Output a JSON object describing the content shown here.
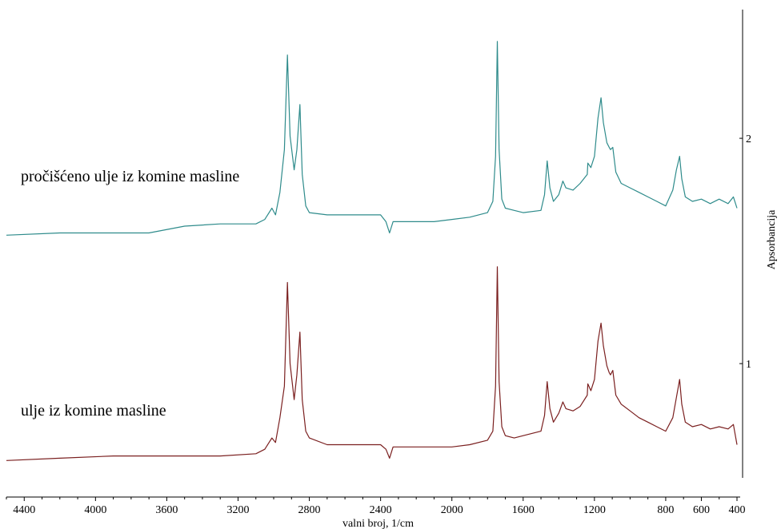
{
  "chart_data": {
    "type": "line",
    "xlabel": "valni broj, 1/cm",
    "ylabel": "Apsorbancija",
    "xlim": [
      4500,
      400
    ],
    "ylim": [
      0.5,
      2.55
    ],
    "x_ticks": [
      4400,
      4000,
      3600,
      3200,
      2800,
      2400,
      2000,
      1600,
      1200,
      800,
      600,
      400
    ],
    "y_ticks": [
      1,
      2
    ],
    "grid": false,
    "series": [
      {
        "name": "pročišćeno ulje iz komine masline",
        "color": "#2e8b8b",
        "points": [
          [
            4500,
            1.57
          ],
          [
            4200,
            1.58
          ],
          [
            3900,
            1.58
          ],
          [
            3700,
            1.58
          ],
          [
            3500,
            1.61
          ],
          [
            3300,
            1.62
          ],
          [
            3100,
            1.62
          ],
          [
            3050,
            1.64
          ],
          [
            3010,
            1.69
          ],
          [
            2990,
            1.66
          ],
          [
            2965,
            1.76
          ],
          [
            2940,
            1.95
          ],
          [
            2923,
            2.37
          ],
          [
            2908,
            2.01
          ],
          [
            2885,
            1.86
          ],
          [
            2870,
            1.95
          ],
          [
            2853,
            2.15
          ],
          [
            2840,
            1.84
          ],
          [
            2820,
            1.7
          ],
          [
            2800,
            1.67
          ],
          [
            2700,
            1.66
          ],
          [
            2500,
            1.66
          ],
          [
            2400,
            1.66
          ],
          [
            2370,
            1.63
          ],
          [
            2350,
            1.58
          ],
          [
            2330,
            1.63
          ],
          [
            2300,
            1.63
          ],
          [
            2200,
            1.63
          ],
          [
            2100,
            1.63
          ],
          [
            2000,
            1.64
          ],
          [
            1900,
            1.65
          ],
          [
            1800,
            1.67
          ],
          [
            1770,
            1.72
          ],
          [
            1755,
            1.92
          ],
          [
            1745,
            2.43
          ],
          [
            1735,
            1.95
          ],
          [
            1720,
            1.73
          ],
          [
            1700,
            1.69
          ],
          [
            1650,
            1.68
          ],
          [
            1600,
            1.67
          ],
          [
            1500,
            1.68
          ],
          [
            1480,
            1.75
          ],
          [
            1465,
            1.9
          ],
          [
            1450,
            1.78
          ],
          [
            1430,
            1.72
          ],
          [
            1400,
            1.75
          ],
          [
            1377,
            1.81
          ],
          [
            1360,
            1.78
          ],
          [
            1320,
            1.77
          ],
          [
            1280,
            1.8
          ],
          [
            1240,
            1.84
          ],
          [
            1237,
            1.89
          ],
          [
            1220,
            1.87
          ],
          [
            1200,
            1.92
          ],
          [
            1180,
            2.09
          ],
          [
            1163,
            2.18
          ],
          [
            1150,
            2.07
          ],
          [
            1130,
            1.98
          ],
          [
            1117,
            1.96
          ],
          [
            1110,
            1.95
          ],
          [
            1097,
            1.96
          ],
          [
            1080,
            1.85
          ],
          [
            1050,
            1.8
          ],
          [
            1000,
            1.78
          ],
          [
            950,
            1.76
          ],
          [
            900,
            1.74
          ],
          [
            850,
            1.72
          ],
          [
            800,
            1.7
          ],
          [
            760,
            1.77
          ],
          [
            740,
            1.86
          ],
          [
            722,
            1.92
          ],
          [
            710,
            1.82
          ],
          [
            690,
            1.74
          ],
          [
            650,
            1.72
          ],
          [
            600,
            1.73
          ],
          [
            550,
            1.71
          ],
          [
            500,
            1.73
          ],
          [
            450,
            1.71
          ],
          [
            420,
            1.74
          ],
          [
            400,
            1.69
          ]
        ]
      },
      {
        "name": "ulje iz komine masline",
        "color": "#7a1f1f",
        "points": [
          [
            4500,
            0.57
          ],
          [
            4200,
            0.58
          ],
          [
            3900,
            0.59
          ],
          [
            3700,
            0.59
          ],
          [
            3500,
            0.59
          ],
          [
            3300,
            0.59
          ],
          [
            3100,
            0.6
          ],
          [
            3050,
            0.62
          ],
          [
            3010,
            0.67
          ],
          [
            2990,
            0.65
          ],
          [
            2965,
            0.76
          ],
          [
            2940,
            0.9
          ],
          [
            2923,
            1.36
          ],
          [
            2908,
            1.0
          ],
          [
            2885,
            0.84
          ],
          [
            2870,
            0.95
          ],
          [
            2853,
            1.14
          ],
          [
            2840,
            0.84
          ],
          [
            2820,
            0.7
          ],
          [
            2800,
            0.67
          ],
          [
            2700,
            0.64
          ],
          [
            2500,
            0.64
          ],
          [
            2400,
            0.64
          ],
          [
            2370,
            0.62
          ],
          [
            2350,
            0.58
          ],
          [
            2330,
            0.63
          ],
          [
            2300,
            0.63
          ],
          [
            2200,
            0.63
          ],
          [
            2100,
            0.63
          ],
          [
            2000,
            0.63
          ],
          [
            1900,
            0.64
          ],
          [
            1800,
            0.66
          ],
          [
            1770,
            0.7
          ],
          [
            1755,
            0.9
          ],
          [
            1745,
            1.43
          ],
          [
            1735,
            0.92
          ],
          [
            1720,
            0.72
          ],
          [
            1700,
            0.68
          ],
          [
            1650,
            0.67
          ],
          [
            1600,
            0.68
          ],
          [
            1500,
            0.7
          ],
          [
            1480,
            0.77
          ],
          [
            1465,
            0.92
          ],
          [
            1450,
            0.8
          ],
          [
            1430,
            0.74
          ],
          [
            1400,
            0.78
          ],
          [
            1377,
            0.83
          ],
          [
            1360,
            0.8
          ],
          [
            1320,
            0.79
          ],
          [
            1280,
            0.81
          ],
          [
            1240,
            0.86
          ],
          [
            1237,
            0.91
          ],
          [
            1220,
            0.88
          ],
          [
            1200,
            0.93
          ],
          [
            1180,
            1.1
          ],
          [
            1163,
            1.18
          ],
          [
            1150,
            1.08
          ],
          [
            1130,
            0.99
          ],
          [
            1117,
            0.96
          ],
          [
            1110,
            0.95
          ],
          [
            1097,
            0.97
          ],
          [
            1080,
            0.86
          ],
          [
            1050,
            0.82
          ],
          [
            1000,
            0.79
          ],
          [
            950,
            0.76
          ],
          [
            900,
            0.74
          ],
          [
            850,
            0.72
          ],
          [
            800,
            0.7
          ],
          [
            760,
            0.76
          ],
          [
            740,
            0.85
          ],
          [
            722,
            0.93
          ],
          [
            710,
            0.82
          ],
          [
            690,
            0.74
          ],
          [
            650,
            0.72
          ],
          [
            600,
            0.73
          ],
          [
            550,
            0.71
          ],
          [
            500,
            0.72
          ],
          [
            450,
            0.71
          ],
          [
            420,
            0.73
          ],
          [
            400,
            0.64
          ]
        ]
      }
    ],
    "annotations": [
      {
        "text": "pročišćeno ulje iz komine masline",
        "series": 0
      },
      {
        "text": "ulje iz komine masline",
        "series": 1
      }
    ]
  }
}
